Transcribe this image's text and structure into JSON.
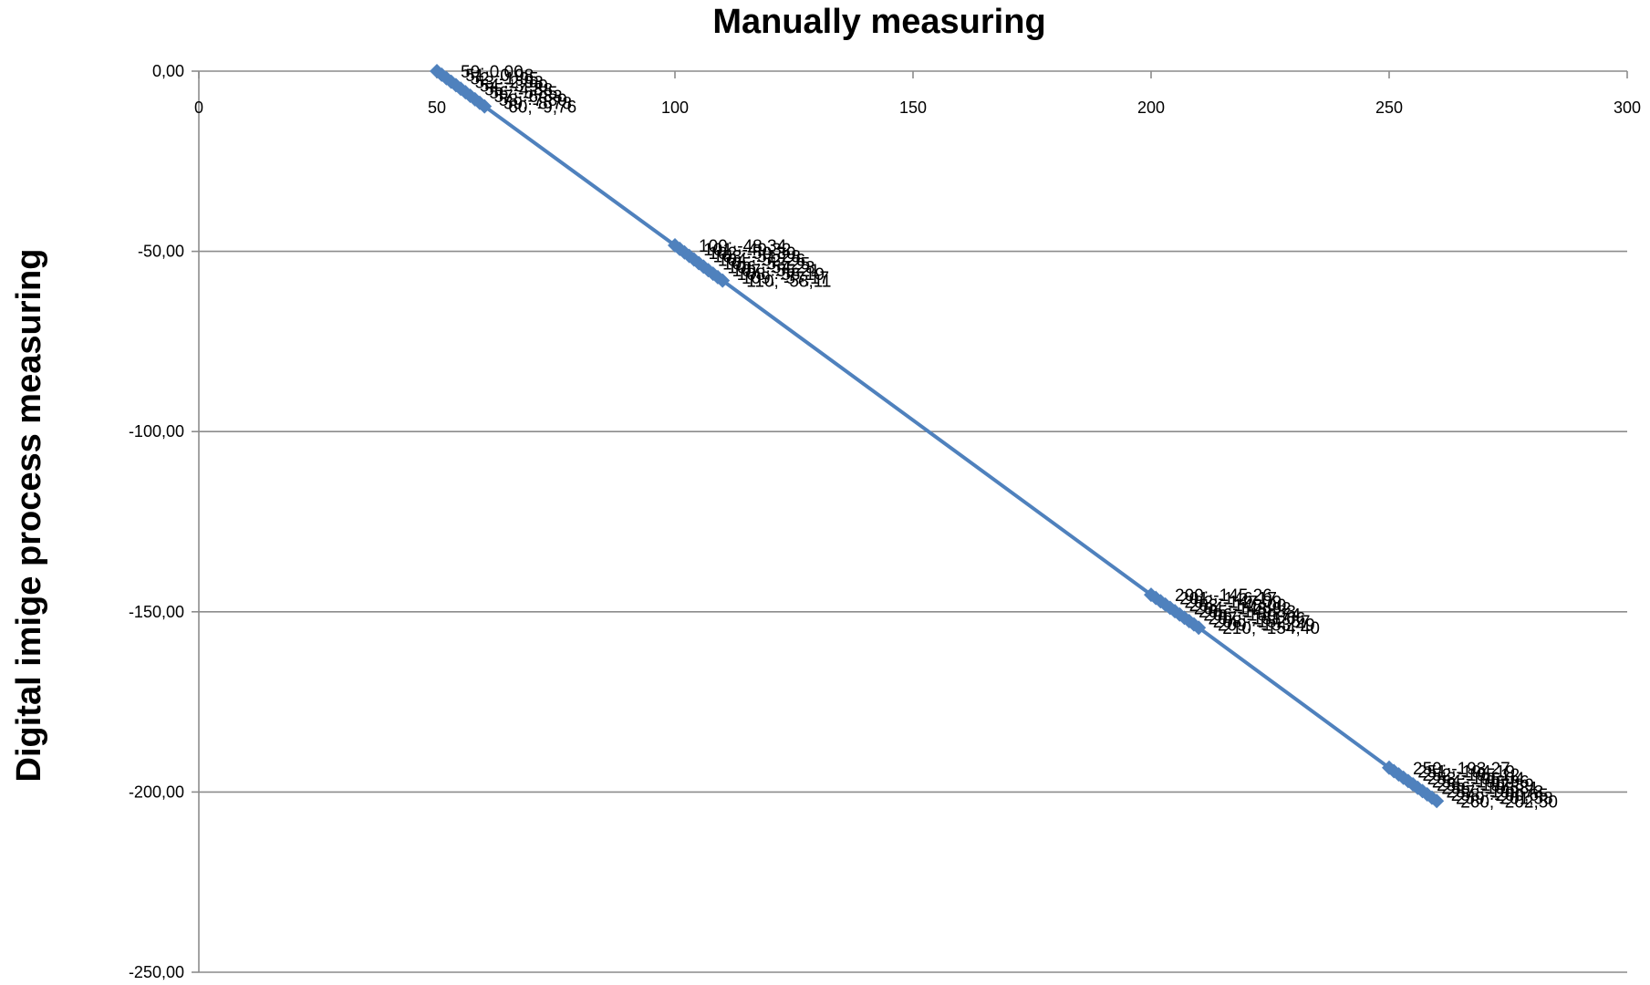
{
  "chart_data": {
    "type": "line",
    "title": "Manually measuring",
    "xlabel": "",
    "ylabel": "Digital imige process measuring",
    "xlim": [
      0,
      300
    ],
    "ylim": [
      -250,
      0
    ],
    "x_ticks": [
      0,
      50,
      100,
      150,
      200,
      250,
      300
    ],
    "x_tick_labels": [
      "0",
      "50",
      "100",
      "150",
      "200",
      "250",
      "300"
    ],
    "y_ticks": [
      0,
      -50,
      -100,
      -150,
      -200,
      -250
    ],
    "y_tick_labels": [
      "0,00",
      "-50,00",
      "-100,00",
      "-150,00",
      "-200,00",
      "-250,00"
    ],
    "grid": "horizontal",
    "x_axis_position": "top",
    "legend": "none",
    "series": [
      {
        "color": "#4f81bd",
        "marker": "diamond",
        "data_labels": true,
        "points": [
          {
            "x": 50,
            "y": 0.0,
            "label": "50; 0,00"
          },
          {
            "x": 51,
            "y": -0.98,
            "label": "51; -0,98"
          },
          {
            "x": 52,
            "y": -1.95,
            "label": "52; -1,95"
          },
          {
            "x": 53,
            "y": -2.93,
            "label": "53; -2,93"
          },
          {
            "x": 54,
            "y": -3.9,
            "label": "54; -3,90"
          },
          {
            "x": 55,
            "y": -4.88,
            "label": "55; -4,88"
          },
          {
            "x": 56,
            "y": -5.85,
            "label": "56; -5,85"
          },
          {
            "x": 57,
            "y": -6.83,
            "label": "57; -6,83"
          },
          {
            "x": 58,
            "y": -7.8,
            "label": "58; -7,80"
          },
          {
            "x": 59,
            "y": -8.78,
            "label": "59; -8,78"
          },
          {
            "x": 60,
            "y": -9.76,
            "label": "60; -9,76"
          },
          {
            "x": 100,
            "y": -48.34,
            "label": "100; -48,34"
          },
          {
            "x": 101,
            "y": -49.32,
            "label": "101; -49,32"
          },
          {
            "x": 102,
            "y": -50.3,
            "label": "102; -50,30"
          },
          {
            "x": 103,
            "y": -51.28,
            "label": "103; -51,28"
          },
          {
            "x": 104,
            "y": -52.26,
            "label": "104; -52,26"
          },
          {
            "x": 105,
            "y": -53.25,
            "label": "105; -53,25"
          },
          {
            "x": 106,
            "y": -54.23,
            "label": "106; -54,23"
          },
          {
            "x": 107,
            "y": -55.21,
            "label": "107; -55,21"
          },
          {
            "x": 108,
            "y": -56.19,
            "label": "108; -56,19"
          },
          {
            "x": 109,
            "y": -57.17,
            "label": "109; -57,17"
          },
          {
            "x": 110,
            "y": -58.11,
            "label": "110; -58,11"
          },
          {
            "x": 200,
            "y": -145.26,
            "label": "200; -145,26"
          },
          {
            "x": 201,
            "y": -146.17,
            "label": "201; -146,17"
          },
          {
            "x": 202,
            "y": -147.09,
            "label": "202; -147,09"
          },
          {
            "x": 203,
            "y": -148.0,
            "label": "203; -148,00"
          },
          {
            "x": 204,
            "y": -148.92,
            "label": "204; -148,92"
          },
          {
            "x": 205,
            "y": -149.83,
            "label": "205; -149,83"
          },
          {
            "x": 206,
            "y": -150.74,
            "label": "206; -150,74"
          },
          {
            "x": 207,
            "y": -151.66,
            "label": "207; -151,66"
          },
          {
            "x": 208,
            "y": -152.57,
            "label": "208; -152,57"
          },
          {
            "x": 209,
            "y": -153.49,
            "label": "209; -153,49"
          },
          {
            "x": 210,
            "y": -154.4,
            "label": "210; -154,40"
          },
          {
            "x": 250,
            "y": -193.27,
            "label": "250; -193,27"
          },
          {
            "x": 251,
            "y": -194.19,
            "label": "251; -194,19"
          },
          {
            "x": 252,
            "y": -195.12,
            "label": "252; -195,12"
          },
          {
            "x": 253,
            "y": -196.04,
            "label": "253; -196,04"
          },
          {
            "x": 254,
            "y": -196.96,
            "label": "254; -196,96"
          },
          {
            "x": 255,
            "y": -197.89,
            "label": "255; -197,89"
          },
          {
            "x": 256,
            "y": -198.81,
            "label": "256; -198,81"
          },
          {
            "x": 257,
            "y": -199.73,
            "label": "257; -199,73"
          },
          {
            "x": 258,
            "y": -200.65,
            "label": "258; -200,65"
          },
          {
            "x": 259,
            "y": -201.58,
            "label": "259; -201,58"
          },
          {
            "x": 260,
            "y": -202.5,
            "label": "260; -202,50"
          }
        ]
      }
    ]
  }
}
